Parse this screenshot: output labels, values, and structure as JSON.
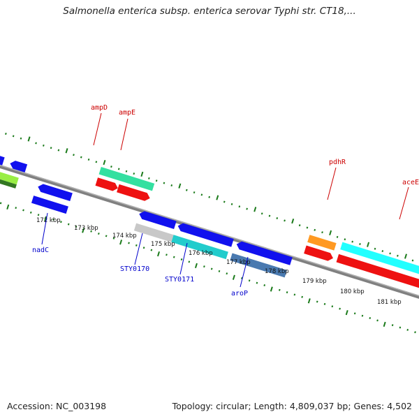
{
  "title": "Salmonella enterica subsp. enterica serovar Typhi str. CT18,...",
  "footer": {
    "accession": "Accession: NC_003198",
    "summary": "Topology: circular; Length: 4,809,037 bp; Genes: 4,502"
  },
  "scale_labels": [
    "172 kbp",
    "173 kbp",
    "174 kbp",
    "175 kbp",
    "176 kbp",
    "177 kbp",
    "178 kbp",
    "179 kbp",
    "180 kbp",
    "181 kbp"
  ],
  "gene_labels": {
    "top": [
      "ampD",
      "ampE",
      "pdhR",
      "aceE"
    ],
    "bottom": [
      "nadC",
      "STY0170",
      "STY0171",
      "aroP"
    ]
  },
  "colors": {
    "top_label": "#cc0000",
    "bottom_label": "#0000cc",
    "tick": "#1a7a1a",
    "backbone": "#808080"
  }
}
